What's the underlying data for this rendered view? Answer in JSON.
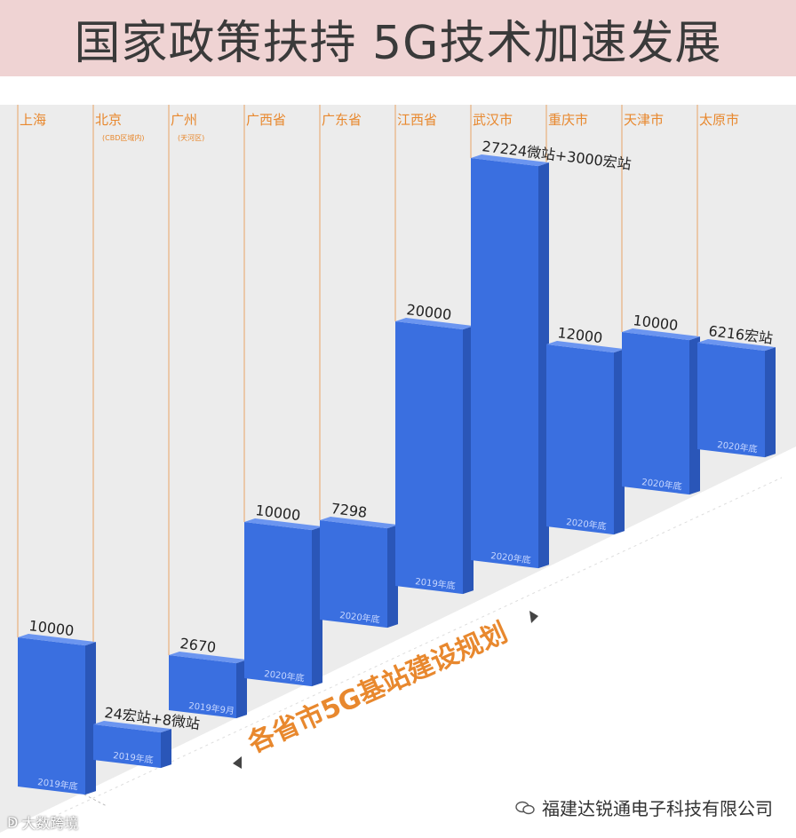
{
  "title": "国家政策扶持 5G技术加速发展",
  "chart_data": {
    "type": "bar",
    "title": "各省市5G基站建设规划",
    "categories": [
      {
        "name": "上海",
        "sub": ""
      },
      {
        "name": "北京",
        "sub": "(CBD区域内)"
      },
      {
        "name": "广州",
        "sub": "(天河区)"
      },
      {
        "name": "广西省",
        "sub": ""
      },
      {
        "name": "广东省",
        "sub": ""
      },
      {
        "name": "江西省",
        "sub": ""
      },
      {
        "name": "武汉市",
        "sub": ""
      },
      {
        "name": "重庆市",
        "sub": ""
      },
      {
        "name": "天津市",
        "sub": ""
      },
      {
        "name": "太原市",
        "sub": ""
      }
    ],
    "values": [
      10000,
      32,
      2670,
      10000,
      7298,
      20000,
      30224,
      12000,
      10000,
      6216
    ],
    "value_labels": [
      "10000",
      "24宏站+8微站",
      "2670",
      "10000",
      "7298",
      "20000",
      "27224微站+3000宏站",
      "12000",
      "10000",
      "6216宏站"
    ],
    "date_labels": [
      "2019年底",
      "2019年底",
      "2019年9月",
      "2020年底",
      "2020年底",
      "2019年底",
      "2020年底",
      "2020年底",
      "2020年底",
      "2020年底"
    ],
    "bar_color": "#3a6fe0",
    "label_color": "#e8882e"
  },
  "watermark": {
    "right_text": "福建达锐通电子科技有限公司",
    "left_text": "大数跨境"
  }
}
